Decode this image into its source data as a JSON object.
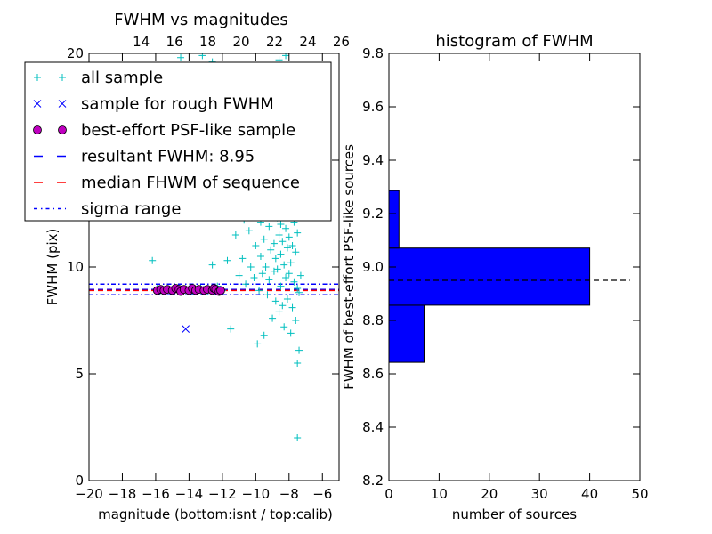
{
  "chart_data": [
    {
      "type": "scatter",
      "title": "FWHM vs magnitudes",
      "xlabel": "magnitude (bottom:isnt / top:calib)",
      "ylabel": "FWHM (pix)",
      "xlim": [
        -20,
        -5
      ],
      "ylim": [
        0,
        20
      ],
      "x_ticks": [
        "−20",
        "−18",
        "−16",
        "−14",
        "−12",
        "−10",
        "−8",
        "−6"
      ],
      "x_tick_values": [
        -20,
        -18,
        -16,
        -14,
        -12,
        -10,
        -8,
        -6
      ],
      "y_ticks": [
        "0",
        "5",
        "10",
        "15",
        "20"
      ],
      "y_tick_values": [
        0,
        5,
        10,
        15,
        20
      ],
      "top_axis": {
        "ticks": [
          "14",
          "16",
          "18",
          "20",
          "22",
          "24",
          "26"
        ],
        "tick_values": [
          14,
          16,
          18,
          20,
          22,
          24,
          26
        ],
        "xlim": [
          10.87,
          25.87
        ]
      },
      "legend": {
        "placement": "upper-left",
        "entries": [
          {
            "label": "all sample",
            "marker": "+",
            "color": "#00bfbf"
          },
          {
            "label": "sample for rough FWHM",
            "marker": "x",
            "color": "#0000ff"
          },
          {
            "label": "best-effort PSF-like sample",
            "marker": "o",
            "color": "#bf00bf"
          },
          {
            "label": "resultant FWHM: 8.95",
            "line": "dashed",
            "color": "#0000ff"
          },
          {
            "label": "median FHWM of sequence",
            "line": "dashed",
            "color": "#ff0000"
          },
          {
            "label": "sigma range",
            "line": "dashdot",
            "color": "#0000ff"
          }
        ]
      },
      "hlines": [
        {
          "name": "resultant FWHM",
          "y": 8.95,
          "color": "#0000ff",
          "style": "dashed"
        },
        {
          "name": "median FHWM of sequence",
          "y": 8.9,
          "color": "#ff0000",
          "style": "dashed"
        },
        {
          "name": "sigma range upper",
          "y": 9.2,
          "color": "#0000ff",
          "style": "dashdot"
        },
        {
          "name": "sigma range lower",
          "y": 8.7,
          "color": "#0000ff",
          "style": "dashdot"
        }
      ],
      "series": [
        {
          "name": "all sample",
          "marker": "+",
          "color": "#00bfbf",
          "points": [
            [
              -16.2,
              10.3
            ],
            [
              -15.9,
              9.0
            ],
            [
              -15.7,
              8.9
            ],
            [
              -15.0,
              8.9
            ],
            [
              -14.6,
              9.0
            ],
            [
              -14.2,
              8.95
            ],
            [
              -13.8,
              8.9
            ],
            [
              -13.3,
              9.0
            ],
            [
              -12.9,
              8.85
            ],
            [
              -12.6,
              10.1
            ],
            [
              -12.3,
              9.1
            ],
            [
              -12.0,
              8.9
            ],
            [
              -11.7,
              10.3
            ],
            [
              -11.5,
              7.1
            ],
            [
              -11.2,
              11.5
            ],
            [
              -11.0,
              9.6
            ],
            [
              -10.8,
              10.4
            ],
            [
              -10.7,
              12.2
            ],
            [
              -10.6,
              9.2
            ],
            [
              -10.4,
              11.7
            ],
            [
              -10.3,
              10.0
            ],
            [
              -10.2,
              12.8
            ],
            [
              -10.1,
              9.5
            ],
            [
              -10.0,
              11.0
            ],
            [
              -9.9,
              6.4
            ],
            [
              -9.9,
              13.0
            ],
            [
              -9.8,
              8.9
            ],
            [
              -9.7,
              10.5
            ],
            [
              -9.7,
              12.1
            ],
            [
              -9.6,
              9.7
            ],
            [
              -9.5,
              11.3
            ],
            [
              -9.5,
              6.8
            ],
            [
              -9.4,
              13.5
            ],
            [
              -9.4,
              10.0
            ],
            [
              -9.3,
              8.7
            ],
            [
              -9.3,
              12.4
            ],
            [
              -9.2,
              11.9
            ],
            [
              -9.2,
              9.4
            ],
            [
              -9.1,
              14.0
            ],
            [
              -9.1,
              10.8
            ],
            [
              -9.0,
              7.6
            ],
            [
              -9.0,
              12.7
            ],
            [
              -8.9,
              11.1
            ],
            [
              -8.9,
              9.8
            ],
            [
              -8.8,
              13.2
            ],
            [
              -8.8,
              10.4
            ],
            [
              -8.8,
              8.4
            ],
            [
              -8.7,
              15.1
            ],
            [
              -8.7,
              12.3
            ],
            [
              -8.7,
              9.9
            ],
            [
              -8.6,
              11.5
            ],
            [
              -8.6,
              7.9
            ],
            [
              -8.6,
              13.9
            ],
            [
              -8.5,
              10.6
            ],
            [
              -8.5,
              12.0
            ],
            [
              -8.5,
              9.1
            ],
            [
              -8.4,
              14.6
            ],
            [
              -8.4,
              11.2
            ],
            [
              -8.4,
              8.2
            ],
            [
              -8.3,
              12.8
            ],
            [
              -8.3,
              10.1
            ],
            [
              -8.3,
              7.2
            ],
            [
              -8.2,
              15.8
            ],
            [
              -8.2,
              11.8
            ],
            [
              -8.2,
              9.5
            ],
            [
              -8.1,
              13.4
            ],
            [
              -8.1,
              10.9
            ],
            [
              -8.1,
              8.5
            ],
            [
              -8.0,
              14.2
            ],
            [
              -8.0,
              11.4
            ],
            [
              -8.0,
              9.7
            ],
            [
              -7.9,
              12.5
            ],
            [
              -7.9,
              10.2
            ],
            [
              -7.9,
              6.9
            ],
            [
              -7.8,
              13.1
            ],
            [
              -7.8,
              11.0
            ],
            [
              -7.8,
              8.1
            ],
            [
              -7.7,
              12.1
            ],
            [
              -7.7,
              9.3
            ],
            [
              -7.6,
              10.7
            ],
            [
              -7.6,
              7.5
            ],
            [
              -7.5,
              11.6
            ],
            [
              -7.5,
              9.0
            ],
            [
              -7.5,
              5.5
            ],
            [
              -7.4,
              8.8
            ],
            [
              -7.4,
              6.1
            ],
            [
              -7.3,
              9.6
            ],
            [
              -7.5,
              2.0
            ],
            [
              -10.2,
              16.2
            ],
            [
              -9.1,
              17.0
            ],
            [
              -8.6,
              16.6
            ],
            [
              -9.8,
              18.2
            ],
            [
              -8.2,
              19.9
            ],
            [
              -9.3,
              19.3
            ],
            [
              -8.6,
              19.7
            ],
            [
              -12.6,
              19.6
            ],
            [
              -13.2,
              19.9
            ],
            [
              -14.5,
              19.8
            ],
            [
              -10.5,
              15.3
            ],
            [
              -8.9,
              16.0
            ],
            [
              -8.0,
              15.4
            ],
            [
              -8.3,
              17.6
            ],
            [
              -9.6,
              15.8
            ],
            [
              -10.8,
              14.4
            ],
            [
              -7.9,
              14.9
            ]
          ]
        },
        {
          "name": "sample for rough FWHM",
          "marker": "x",
          "color": "#0000ff",
          "points": [
            [
              -14.2,
              7.1
            ]
          ]
        },
        {
          "name": "best-effort PSF-like sample",
          "marker": "o",
          "color": "#bf00bf",
          "points": [
            [
              -15.9,
              8.9
            ],
            [
              -15.7,
              8.95
            ],
            [
              -15.5,
              8.9
            ],
            [
              -15.3,
              8.95
            ],
            [
              -15.0,
              8.9
            ],
            [
              -14.8,
              9.0
            ],
            [
              -14.6,
              8.95
            ],
            [
              -14.5,
              8.85
            ],
            [
              -14.3,
              8.95
            ],
            [
              -14.0,
              8.9
            ],
            [
              -13.8,
              9.0
            ],
            [
              -13.6,
              8.9
            ],
            [
              -13.4,
              8.95
            ],
            [
              -13.1,
              8.9
            ],
            [
              -12.9,
              8.95
            ],
            [
              -12.6,
              8.9
            ],
            [
              -12.5,
              9.0
            ],
            [
              -12.4,
              8.95
            ],
            [
              -12.2,
              8.85
            ],
            [
              -12.1,
              8.9
            ]
          ]
        }
      ]
    },
    {
      "type": "bar",
      "orientation": "horizontal",
      "title": "histogram of FWHM",
      "xlabel": "number of sources",
      "ylabel": "FWHM of best-effort PSF-like sources",
      "xlim": [
        0,
        50
      ],
      "ylim": [
        8.2,
        9.8
      ],
      "x_ticks": [
        "0",
        "10",
        "20",
        "30",
        "40",
        "50"
      ],
      "x_tick_values": [
        0,
        10,
        20,
        30,
        40,
        50
      ],
      "y_ticks": [
        "8.2",
        "8.4",
        "8.6",
        "8.8",
        "9.0",
        "9.2",
        "9.4",
        "9.6",
        "9.8"
      ],
      "y_tick_values": [
        8.2,
        8.4,
        8.6,
        8.8,
        9.0,
        9.2,
        9.4,
        9.6,
        9.8
      ],
      "bins": [
        {
          "lo": 8.643,
          "hi": 8.857,
          "count": 7
        },
        {
          "lo": 8.857,
          "hi": 9.071,
          "count": 40
        },
        {
          "lo": 9.071,
          "hi": 9.286,
          "count": 2
        }
      ],
      "color": "#0000ff",
      "hline": {
        "y": 8.95,
        "color": "#000000",
        "style": "dashed",
        "x_extent": [
          0,
          48
        ]
      }
    }
  ]
}
